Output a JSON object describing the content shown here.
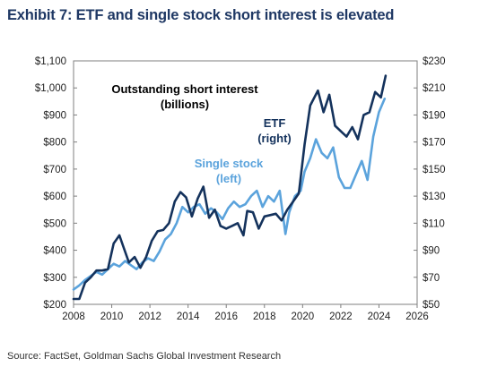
{
  "title": "Exhibit 7: ETF and single stock short interest is elevated",
  "source": "Source: FactSet, Goldman Sachs Global Investment Research",
  "chart_data": {
    "type": "line",
    "x_ticks": [
      "2008",
      "2010",
      "2012",
      "2014",
      "2016",
      "2018",
      "2020",
      "2022",
      "2024",
      "2026"
    ],
    "xlim": [
      2008,
      2026
    ],
    "left_axis": {
      "ylim": [
        200,
        1100
      ],
      "ticks": [
        "$200",
        "$300",
        "$400",
        "$500",
        "$600",
        "$700",
        "$800",
        "$900",
        "$1,000",
        "$1,100"
      ]
    },
    "right_axis": {
      "ylim": [
        50,
        230
      ],
      "ticks": [
        "$50",
        "$70",
        "$90",
        "$110",
        "$130",
        "$150",
        "$170",
        "$190",
        "$210",
        "$230"
      ]
    },
    "annotations": {
      "outstanding": [
        "Outstanding short interest",
        "(billions)"
      ],
      "etf": [
        "ETF",
        "(right)"
      ],
      "single": [
        "Single stock",
        "(left)"
      ]
    },
    "colors": {
      "etf": "#14325c",
      "single": "#5ba3dc"
    },
    "series": [
      {
        "name": "Single stock",
        "axis": "left",
        "color": "#5ba3dc",
        "x": [
          2008.0,
          2008.3,
          2008.6,
          2008.9,
          2009.2,
          2009.5,
          2009.8,
          2010.1,
          2010.4,
          2010.7,
          2011.0,
          2011.3,
          2011.6,
          2011.9,
          2012.2,
          2012.5,
          2012.8,
          2013.1,
          2013.4,
          2013.7,
          2014.0,
          2014.3,
          2014.6,
          2014.9,
          2015.2,
          2015.5,
          2015.8,
          2016.1,
          2016.4,
          2016.7,
          2017.0,
          2017.3,
          2017.6,
          2017.9,
          2018.2,
          2018.5,
          2018.8,
          2019.1,
          2019.3,
          2019.6,
          2019.9,
          2020.1,
          2020.4,
          2020.7,
          2021.0,
          2021.3,
          2021.6,
          2021.9,
          2022.2,
          2022.5,
          2022.8,
          2023.1,
          2023.4,
          2023.7,
          2024.0,
          2024.3
        ],
        "values": [
          255,
          270,
          290,
          305,
          320,
          310,
          330,
          350,
          340,
          360,
          345,
          330,
          355,
          370,
          360,
          395,
          440,
          460,
          500,
          560,
          540,
          560,
          570,
          535,
          555,
          540,
          515,
          555,
          580,
          560,
          570,
          600,
          620,
          560,
          600,
          580,
          620,
          460,
          540,
          600,
          620,
          690,
          740,
          810,
          760,
          740,
          780,
          670,
          630,
          630,
          680,
          730,
          660,
          820,
          910,
          960
        ]
      },
      {
        "name": "ETF",
        "axis": "right",
        "color": "#14325c",
        "x": [
          2008.0,
          2008.3,
          2008.6,
          2008.9,
          2009.2,
          2009.5,
          2009.8,
          2010.1,
          2010.4,
          2010.6,
          2010.9,
          2011.2,
          2011.5,
          2011.8,
          2012.1,
          2012.4,
          2012.7,
          2013.0,
          2013.3,
          2013.6,
          2013.9,
          2014.2,
          2014.5,
          2014.8,
          2015.1,
          2015.4,
          2015.7,
          2016.0,
          2016.3,
          2016.6,
          2016.9,
          2017.1,
          2017.4,
          2017.7,
          2018.0,
          2018.3,
          2018.6,
          2018.9,
          2019.2,
          2019.5,
          2019.8,
          2020.1,
          2020.4,
          2020.8,
          2021.1,
          2021.4,
          2021.7,
          2022.0,
          2022.3,
          2022.6,
          2022.9,
          2023.2,
          2023.5,
          2023.8,
          2024.1,
          2024.35
        ],
        "values": [
          54,
          54,
          66,
          70,
          75,
          75,
          76,
          95,
          101,
          93,
          81,
          85,
          77,
          85,
          97,
          104,
          105,
          110,
          126,
          133,
          129,
          115,
          128,
          137,
          114,
          120,
          108,
          106,
          108,
          110,
          101,
          119,
          118,
          106,
          115,
          116,
          117,
          112,
          120,
          126,
          132,
          168,
          197,
          208,
          192,
          205,
          182,
          178,
          174,
          181,
          172,
          190,
          192,
          207,
          203,
          219
        ]
      }
    ]
  }
}
